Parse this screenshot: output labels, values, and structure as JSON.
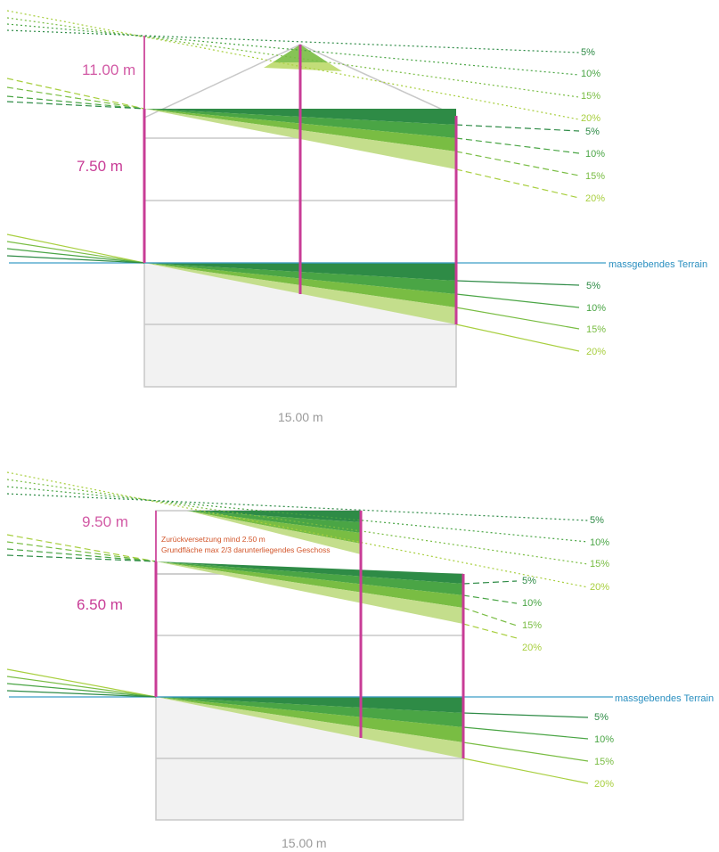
{
  "diagram_top": {
    "total_height_label": "11.00 m",
    "eave_height_label": "7.50 m",
    "width_label": "15.00 m",
    "terrain_label": "massgebendes Terrain",
    "slopes_roof": [
      "5%",
      "10%",
      "15%",
      "20%"
    ],
    "slopes_eave": [
      "5%",
      "10%",
      "15%",
      "20%"
    ],
    "slopes_terrain": [
      "5%",
      "10%",
      "15%",
      "20%"
    ]
  },
  "diagram_bottom": {
    "total_height_label": "9.50 m",
    "eave_height_label": "6.50 m",
    "width_label": "15.00 m",
    "terrain_label": "massgebendes Terrain",
    "note_line1": "Zurückversetzung mind 2.50 m",
    "note_line2": "Grundfläche max 2/3 darunterliegendes Geschoss",
    "slopes_top": [
      "5%",
      "10%",
      "15%",
      "20%"
    ],
    "slopes_eave": [
      "5%",
      "10%",
      "15%",
      "20%"
    ],
    "slopes_terrain": [
      "5%",
      "10%",
      "15%",
      "20%"
    ]
  },
  "colors": {
    "slope_5": "#2e8b46",
    "slope_10": "#4aa545",
    "slope_15": "#79bd43",
    "slope_20": "#a8cf3f",
    "height_line": "#c83c96",
    "height_label": "#d25aa5",
    "terrain_line": "#3a9ec8",
    "note_text": "#d2552a",
    "outline": "#c8c8c8",
    "basement": "#f2f2f2"
  }
}
